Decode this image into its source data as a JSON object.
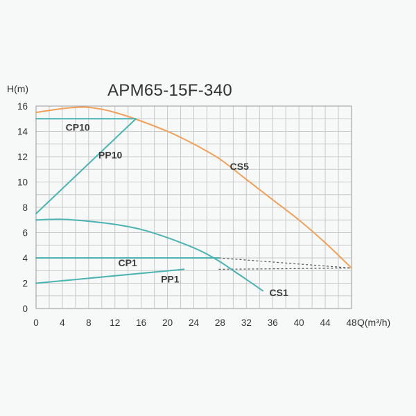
{
  "chart_data": {
    "type": "line",
    "title": "APM65-15F-340",
    "xlabel": "Q(m³/h)",
    "ylabel": "H(m)",
    "xlim": [
      0,
      48
    ],
    "ylim": [
      0,
      16
    ],
    "x_ticks": [
      "0",
      "4",
      "8",
      "12",
      "16",
      "20",
      "24",
      "28",
      "32",
      "36",
      "40",
      "44",
      "48"
    ],
    "y_ticks": [
      "0",
      "2",
      "4",
      "6",
      "8",
      "10",
      "12",
      "14",
      "16"
    ],
    "grid": true,
    "colors": {
      "orange": "#f0a05a",
      "teal": "#4bb3b1",
      "dashed": "#555555",
      "grid": "#c8c8c8"
    },
    "series": [
      {
        "name": "CS5",
        "color": "#f0a05a",
        "style": "solid",
        "points": [
          [
            0,
            15.5
          ],
          [
            4,
            15.8
          ],
          [
            6,
            15.9
          ],
          [
            8,
            15.9
          ],
          [
            10,
            15.75
          ],
          [
            12,
            15.5
          ],
          [
            15,
            15.0
          ],
          [
            20,
            14.0
          ],
          [
            24,
            13.0
          ],
          [
            28,
            11.8
          ],
          [
            32,
            10.2
          ],
          [
            36,
            8.6
          ],
          [
            40,
            7.0
          ],
          [
            44,
            5.2
          ],
          [
            48,
            3.2
          ]
        ]
      },
      {
        "name": "CS1",
        "color": "#4bb3b1",
        "style": "solid",
        "points": [
          [
            0,
            7.0
          ],
          [
            4,
            7.05
          ],
          [
            8,
            6.9
          ],
          [
            12,
            6.65
          ],
          [
            16,
            6.25
          ],
          [
            20,
            5.6
          ],
          [
            24,
            4.8
          ],
          [
            26,
            4.3
          ],
          [
            28,
            3.7
          ],
          [
            30,
            3.0
          ],
          [
            32,
            2.3
          ],
          [
            34.5,
            1.4
          ]
        ]
      },
      {
        "name": "CP10",
        "color": "#4bb3b1",
        "style": "solid",
        "points": [
          [
            0,
            15.0
          ],
          [
            15.2,
            15.0
          ]
        ]
      },
      {
        "name": "PP10",
        "color": "#4bb3b1",
        "style": "solid",
        "points": [
          [
            0,
            7.5
          ],
          [
            15.2,
            15.0
          ]
        ]
      },
      {
        "name": "CP1",
        "color": "#4bb3b1",
        "style": "solid",
        "points": [
          [
            0,
            4.0
          ],
          [
            27.8,
            4.0
          ]
        ]
      },
      {
        "name": "PP1",
        "color": "#4bb3b1",
        "style": "solid",
        "points": [
          [
            0,
            2.0
          ],
          [
            22.5,
            3.1
          ]
        ]
      }
    ],
    "dashed_lines": [
      {
        "points": [
          [
            27.8,
            4.0
          ],
          [
            48,
            3.2
          ]
        ]
      },
      {
        "points": [
          [
            27.8,
            3.1
          ],
          [
            48,
            3.2
          ]
        ]
      }
    ],
    "annotations": [
      {
        "text": "CP10",
        "x": 4.5,
        "y": 14.05
      },
      {
        "text": "PP10",
        "x": 9.5,
        "y": 11.85
      },
      {
        "text": "CS5",
        "x": 29.5,
        "y": 10.95
      },
      {
        "text": "CP1",
        "x": 12.5,
        "y": 3.35
      },
      {
        "text": "PP1",
        "x": 19,
        "y": 2.05
      },
      {
        "text": "CS1",
        "x": 35.5,
        "y": 1.0
      }
    ]
  }
}
